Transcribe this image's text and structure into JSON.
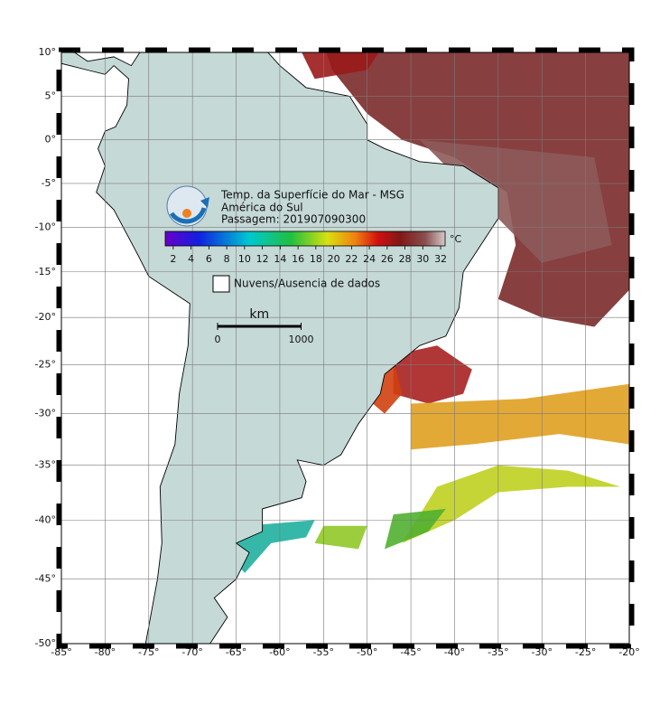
{
  "map": {
    "xlim": [
      -85,
      -20
    ],
    "ylim": [
      -50,
      10
    ],
    "xticks": [
      {
        "value": -85,
        "label": "-85°"
      },
      {
        "value": -80,
        "label": "-80°"
      },
      {
        "value": -75,
        "label": "-75°"
      },
      {
        "value": -70,
        "label": "-70°"
      },
      {
        "value": -65,
        "label": "-65°"
      },
      {
        "value": -60,
        "label": "-60°"
      },
      {
        "value": -55,
        "label": "-55°"
      },
      {
        "value": -50,
        "label": "-50°"
      },
      {
        "value": -45,
        "label": "-45°"
      },
      {
        "value": -40,
        "label": "-40°"
      },
      {
        "value": -35,
        "label": "-35°"
      },
      {
        "value": -30,
        "label": "-30°"
      },
      {
        "value": -25,
        "label": "-25°"
      },
      {
        "value": -20,
        "label": "-20°"
      }
    ],
    "yticks": [
      {
        "value": 10,
        "label": "10°"
      },
      {
        "value": 5,
        "label": "5°"
      },
      {
        "value": 0,
        "label": "0°"
      },
      {
        "value": -5,
        "label": "-5°"
      },
      {
        "value": -10,
        "label": "-10°"
      },
      {
        "value": -15,
        "label": "-15°"
      },
      {
        "value": -20,
        "label": "-20°"
      },
      {
        "value": -25,
        "label": "-25°"
      },
      {
        "value": -30,
        "label": "-30°"
      },
      {
        "value": -35,
        "label": "-35°"
      },
      {
        "value": -40,
        "label": "-40°"
      },
      {
        "value": -45,
        "label": "-45°"
      },
      {
        "value": -50,
        "label": "-50°"
      }
    ],
    "grid": true
  },
  "legend": {
    "title": "Temp. da Superfície do Mar - MSG",
    "region": "América do Sul",
    "pass": "Passagem: 201907090300",
    "unit": "°C",
    "colorbar": {
      "lim": [
        1.1,
        32.5
      ],
      "ticks": [
        2,
        4,
        6,
        8,
        10,
        12,
        14,
        16,
        18,
        20,
        22,
        24,
        26,
        28,
        30,
        32
      ]
    },
    "nodata": "Nuvens/Ausencia de dados"
  },
  "scale_bar": {
    "unit": "km",
    "ticks": [
      0,
      1000
    ]
  }
}
